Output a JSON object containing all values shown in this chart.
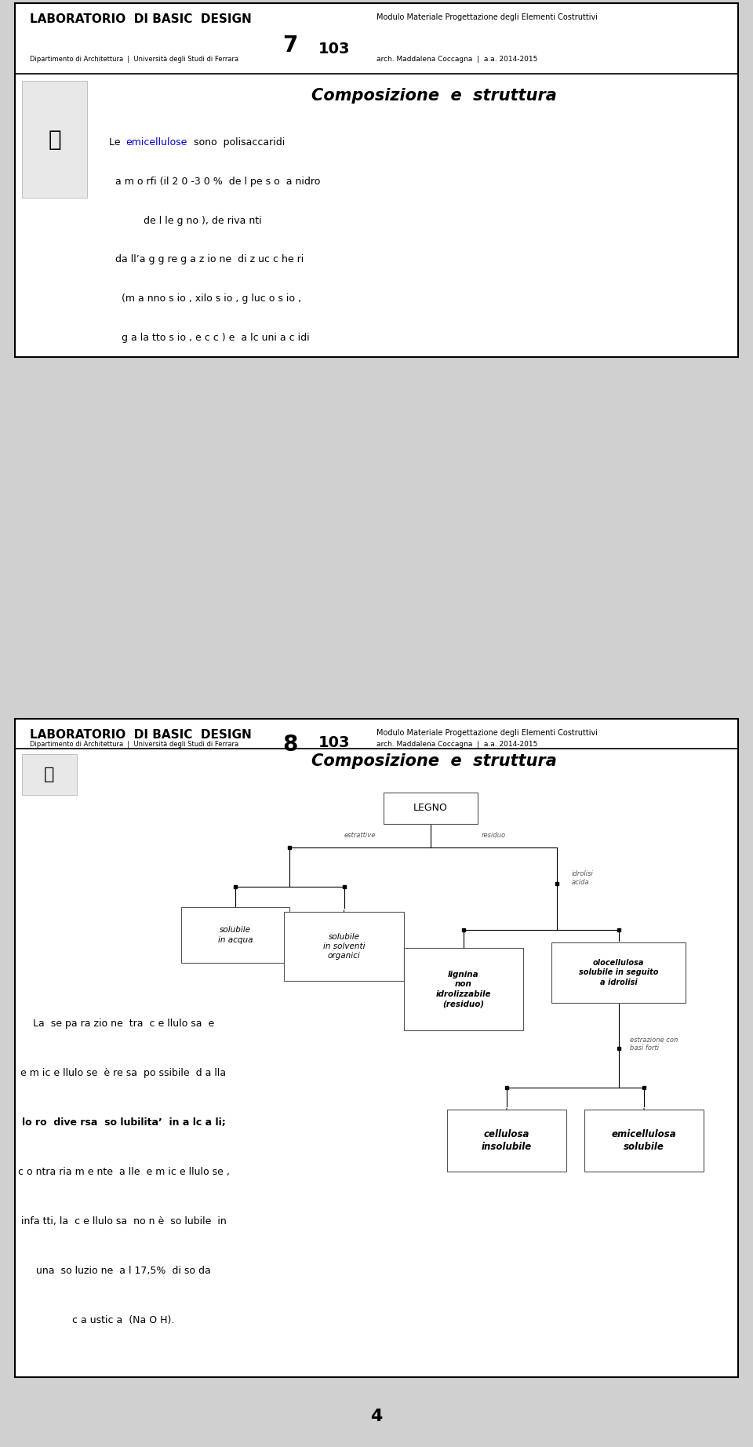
{
  "bg_color": "#d0d0d0",
  "panel_bg": "#ffffff",
  "border_color": "#000000",
  "header1": {
    "title_left": "LABORATORIO  DI BASIC  DESIGN",
    "subtitle_left": "Dipartimento di Architettura  |  Università degli Studi di Ferrara",
    "number1": "7",
    "number2": "103",
    "title_right": "Modulo Materiale Progettazione degli Elementi Costruttivi",
    "subtitle_right": "arch. Maddalena Coccagna  |  a.a. 2014-2015"
  },
  "header2": {
    "title_left": "LABORATORIO  DI BASIC  DESIGN",
    "subtitle_left": "Dipartimento di Architettura  |  Università degli Studi di Ferrara",
    "number1": "8",
    "number2": "103",
    "title_right": "Modulo Materiale Progettazione degli Elementi Costruttivi",
    "subtitle_right": "arch. Maddalena Coccagna  |  a.a. 2014-2015"
  },
  "section_title": "Composizione  e  struttura",
  "panel1_text_lines": [
    {
      "text": "Le ",
      "bold": false,
      "color": "#000000"
    },
    {
      "text": "e m ic e llulo s e",
      "bold": false,
      "color": "#0000cc"
    },
    {
      "text": "  s o no  po lis a c c a ridi",
      "bold": false,
      "color": "#000000"
    }
  ],
  "panel1_text_block": "Le  emicellulose  sono  polisaccaridi\n  a m o rfi (il 2 0 -3 0 %  de l pe s o  a nidro\n           de l le g no ), de riva nti\n  da ll’a g g re g a z io ne  di z uc c he ri\n    (m a nno s io , xilo s io , g luc o s io ,\n     g a la tto s io , e c c ) e  a lc uni a c idi",
  "panel2_text_line1": "La  se pa ra zio ne  tra  c e llulo sa  e",
  "panel2_text_line2": "e m ic e llulo se  è re sa  po ssibile  d a lla",
  "panel2_text_line3a": "lo ro  ",
  "panel2_text_line3b": "dive rsa  so lubilita’  in a lc a li;",
  "panel2_text_line4": "c o ntra ria m e nte  a lle  e m ic e llulo se ,",
  "panel2_text_line5": "infa tti, la  c e llulo sa  no n è  so lubile  in",
  "panel2_text_line6": "una  so luzio ne  a l 17,5%  di so da",
  "panel2_text_line7": "c a ustic a  (Na O H).",
  "footer_number": "4",
  "tree_root_label": "LEGNO",
  "tree_branch_left_label": "estrattive",
  "tree_branch_right_label": "residuo",
  "tree_idrolisi_label": "idrolisi\nacida",
  "tree_estrazione_label": "estrazione con\nbasi forti",
  "tree_node_acqua": "solubile\nin acqua",
  "tree_node_org": "solubile\nin solventi\norganici",
  "tree_node_lignina": "lignina\nnon\nidrolizzabile\n(residuo)",
  "tree_node_oloc": "olocellulosa\nsolubile in seguito\na idrolisi",
  "tree_node_cell": "cellulosa\ninsolubile",
  "tree_node_emic": "emicellulosa\nsolubile"
}
